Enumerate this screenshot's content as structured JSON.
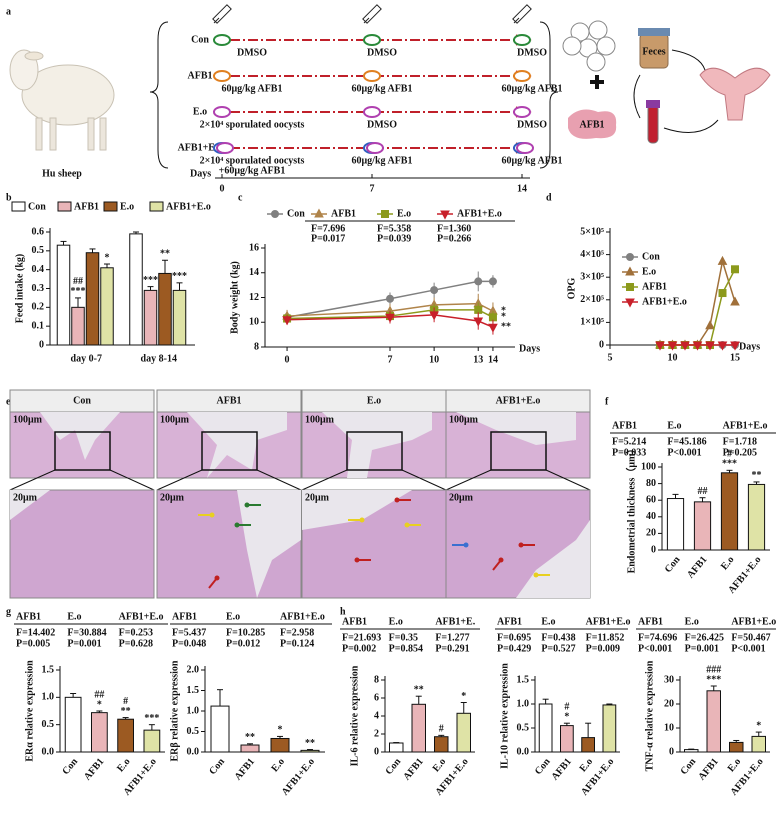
{
  "panel_labels": [
    "a",
    "b",
    "c",
    "d",
    "e",
    "f",
    "g",
    "h"
  ],
  "schematic": {
    "animal": "Hu sheep",
    "groups": [
      {
        "name": "Con",
        "doses": [
          [
            "DMSO"
          ],
          [
            "DMSO"
          ],
          [
            "DMSO"
          ]
        ]
      },
      {
        "name": "AFB1",
        "doses": [
          [
            "60μg/kg AFB1"
          ],
          [
            "60μg/kg AFB1"
          ],
          [
            "60μg/kg AFB1"
          ]
        ]
      },
      {
        "name": "E.o",
        "doses": [
          [
            "2×10⁴ sporulated oocysts"
          ],
          [
            "DMSO"
          ],
          [
            "DMSO"
          ]
        ]
      },
      {
        "name": "AFB1+E.o",
        "doses": [
          [
            "2×10⁴ sporulated oocysts",
            "+60μg/kg AFB1"
          ],
          [
            "60μg/kg AFB1"
          ],
          [
            "60μg/kg AFB1"
          ]
        ]
      }
    ],
    "days_label": "Days",
    "days": [
      0,
      7,
      14
    ],
    "toxin": "AFB1",
    "sample": "Feces"
  },
  "histology": {
    "groups": [
      "Con",
      "AFB1",
      "E.o",
      "AFB1+E.o"
    ],
    "scale_low_mag": "100μm",
    "scale_high_mag": "20μm"
  },
  "chart_data": [
    {
      "type": "bar",
      "categories": [
        "day 0-7",
        "day 8-14"
      ],
      "y_label": "Feed intake (kg)",
      "ylim": [
        0,
        0.6
      ],
      "yticks": [
        0,
        0.1,
        0.2,
        0.3,
        0.4,
        0.5,
        0.6
      ],
      "legend": "top",
      "series": [
        {
          "name": "Con",
          "color": "#ffffff",
          "values": [
            0.53,
            0.59
          ],
          "errors": [
            0.02,
            0.01
          ]
        },
        {
          "name": "AFB1",
          "color": "#e9b5b8",
          "values": [
            0.2,
            0.29
          ],
          "errors": [
            0.05,
            0.02
          ],
          "annotations": [
            {
              "index": 0,
              "lines": [
                "##",
                "***"
              ]
            },
            {
              "index": 1,
              "lines": [
                "***"
              ]
            }
          ]
        },
        {
          "name": "E.o",
          "color": "#9c5a22",
          "values": [
            0.49,
            0.38
          ],
          "errors": [
            0.02,
            0.07
          ],
          "annotations": [
            {
              "index": 1,
              "lines": [
                "**"
              ]
            }
          ]
        },
        {
          "name": "AFB1+E.o",
          "color": "#dfe3a6",
          "values": [
            0.41,
            0.29
          ],
          "errors": [
            0.02,
            0.04
          ],
          "annotations": [
            {
              "index": 0,
              "lines": [
                "*"
              ]
            },
            {
              "index": 1,
              "lines": [
                "***"
              ]
            }
          ]
        }
      ]
    },
    {
      "type": "line",
      "x": [
        0,
        7,
        10,
        13,
        14
      ],
      "xlim": [
        -1.5,
        15.5
      ],
      "xticks": [
        0,
        7,
        10,
        13,
        14
      ],
      "x_label": "Days",
      "y_label": "Body weight (kg)",
      "ylim": [
        8,
        16
      ],
      "yticks": [
        8,
        10,
        12,
        14,
        16
      ],
      "legend": "top",
      "series": [
        {
          "name": "Con",
          "color": "#808080",
          "marker": "circle",
          "values": [
            10.4,
            11.9,
            12.6,
            13.3,
            13.3
          ],
          "errors": [
            0.5,
            0.5,
            0.6,
            0.8,
            0.5
          ]
        },
        {
          "name": "AFB1",
          "color": "#b0844a",
          "marker": "triangle",
          "values": [
            10.5,
            10.9,
            11.4,
            11.5,
            10.9
          ],
          "errors": [
            0.5,
            0.6,
            0.6,
            0.8,
            0.7
          ],
          "annotations": [
            {
              "index": 4,
              "lines": [
                "*"
              ]
            }
          ]
        },
        {
          "name": "E.o",
          "color": "#8c9a1c",
          "marker": "square",
          "values": [
            10.3,
            10.5,
            11.0,
            11.0,
            10.4
          ],
          "errors": [
            0.4,
            0.5,
            0.5,
            0.6,
            0.5
          ],
          "annotations": [
            {
              "index": 4,
              "lines": [
                "*"
              ]
            }
          ]
        },
        {
          "name": "AFB1+E.o",
          "color": "#c8202a",
          "marker": "triangle-down",
          "values": [
            10.2,
            10.4,
            10.6,
            10.1,
            9.6
          ],
          "errors": [
            0.4,
            0.5,
            0.6,
            0.7,
            0.6
          ],
          "annotations": [
            {
              "index": 4,
              "lines": [
                "**"
              ]
            }
          ]
        }
      ],
      "stats": [
        {
          "F": "F=7.696",
          "P": "P=0.017"
        },
        {
          "F": "F=5.358",
          "P": "P=0.039"
        },
        {
          "F": "F=1.360",
          "P": "P=0.266"
        }
      ]
    },
    {
      "type": "line",
      "x": [
        9,
        10,
        11,
        12,
        13,
        14,
        15
      ],
      "xlim": [
        5,
        15
      ],
      "xticks": [
        5,
        10,
        15
      ],
      "x_label": "Days",
      "y_label": "OPG",
      "ylim": [
        0,
        500000
      ],
      "yticks": [
        0,
        {
          "value": 100000,
          "label": "1×10⁵"
        },
        {
          "value": 200000,
          "label": "2×10⁵"
        },
        {
          "value": 300000,
          "label": "3×10⁵"
        },
        {
          "value": 400000,
          "label": "4×10⁵"
        },
        {
          "value": 500000,
          "label": "5×10⁵"
        }
      ],
      "legend": "upper left",
      "series": [
        {
          "name": "Con",
          "color": "#808080",
          "marker": "circle",
          "values": [
            0,
            0,
            0,
            0,
            0,
            0,
            0
          ]
        },
        {
          "name": "E.o",
          "color": "#a0703a",
          "marker": "triangle",
          "values": [
            0,
            0,
            0,
            0,
            85000,
            370000,
            190000
          ]
        },
        {
          "name": "AFB1",
          "color": "#8c9a1c",
          "marker": "square",
          "values": [
            0,
            0,
            0,
            0,
            0,
            230000,
            335000
          ]
        },
        {
          "name": "AFB1+E.o",
          "color": "#c8202a",
          "marker": "triangle-down",
          "values": [
            0,
            0,
            0,
            0,
            0,
            0,
            0
          ]
        }
      ]
    },
    {
      "type": "bar",
      "categories": [
        "Con",
        "AFB1",
        "E.o",
        "AFB1+E.o"
      ],
      "colors": [
        "#ffffff",
        "#e9b5b8",
        "#9c5a22",
        "#dfe3a6"
      ],
      "values": [
        62,
        58,
        93,
        79
      ],
      "errors": [
        5,
        5,
        3,
        3
      ],
      "ylim": [
        0,
        100
      ],
      "yticks": [
        0,
        20,
        40,
        60,
        80,
        100
      ],
      "y_label": "Endometrial thickness（μm）",
      "annotations": [
        {
          "index": 1,
          "lines": [
            "##"
          ]
        },
        {
          "index": 2,
          "lines": [
            "#",
            "***"
          ]
        },
        {
          "index": 3,
          "lines": [
            "**"
          ]
        }
      ],
      "stats": [
        {
          "group": "AFB1",
          "F": "F=5.214",
          "P": "P=0.033"
        },
        {
          "group": "E.o",
          "F": "F=45.186",
          "P": "P<0.001"
        },
        {
          "group": "AFB1+E.o",
          "F": "F=1.718",
          "P": "P=0.205"
        }
      ]
    },
    {
      "type": "bar",
      "categories": [
        "Con",
        "AFB1",
        "E.o",
        "AFB1+E.o"
      ],
      "colors": [
        "#ffffff",
        "#e9b5b8",
        "#9c5a22",
        "#dfe3a6"
      ],
      "values": [
        1.0,
        0.72,
        0.6,
        0.4
      ],
      "errors": [
        0.07,
        0.03,
        0.03,
        0.1
      ],
      "ylim": [
        0,
        1.5
      ],
      "yticks": [
        {
          "value": 0,
          "label": "0.0"
        },
        0.5,
        {
          "value": 1,
          "label": "1.0"
        },
        1.5
      ],
      "y_label": "ERα relative expression",
      "annotations": [
        {
          "index": 1,
          "lines": [
            "##",
            "*"
          ]
        },
        {
          "index": 2,
          "lines": [
            "#",
            "**"
          ]
        },
        {
          "index": 3,
          "lines": [
            "***"
          ]
        }
      ],
      "stats": [
        {
          "group": "AFB1",
          "F": "F=14.402",
          "P": "P=0.005"
        },
        {
          "group": "E.o",
          "F": "F=30.884",
          "P": "P=0.001"
        },
        {
          "group": "AFB1+E.o",
          "F": "F=0.253",
          "P": "P=0.628"
        }
      ]
    },
    {
      "type": "bar",
      "categories": [
        "Con",
        "AFB1",
        "E.o",
        "AFB1+E.o"
      ],
      "colors": [
        "#ffffff",
        "#e9b5b8",
        "#9c5a22",
        "#dfe3a6"
      ],
      "values": [
        1.12,
        0.17,
        0.33,
        0.04
      ],
      "errors": [
        0.4,
        0.03,
        0.05,
        0.02
      ],
      "ylim": [
        0,
        2
      ],
      "yticks": [
        {
          "value": 0,
          "label": "0.0"
        },
        0.5,
        {
          "value": 1,
          "label": "1.0"
        },
        1.5,
        {
          "value": 2,
          "label": "2.0"
        }
      ],
      "y_label": "ERβ relative expression",
      "annotations": [
        {
          "index": 1,
          "lines": [
            "**"
          ]
        },
        {
          "index": 2,
          "lines": [
            "*"
          ]
        },
        {
          "index": 3,
          "lines": [
            "**"
          ]
        }
      ],
      "stats": [
        {
          "group": "AFB1",
          "F": "F=5.437",
          "P": "P=0.048"
        },
        {
          "group": "E.o",
          "F": "F=10.285",
          "P": "P=0.012"
        },
        {
          "group": "AFB1+E.o",
          "F": "F=2.958",
          "P": "P=0.124"
        }
      ]
    },
    {
      "type": "bar",
      "categories": [
        "Con",
        "AFB1",
        "E.o",
        "AFB1+E.o"
      ],
      "colors": [
        "#ffffff",
        "#e9b5b8",
        "#9c5a22",
        "#dfe3a6"
      ],
      "values": [
        1.0,
        5.3,
        1.7,
        4.3
      ],
      "errors": [
        0.05,
        0.9,
        0.15,
        1.2
      ],
      "ylim": [
        0,
        8
      ],
      "yticks": [
        0,
        2,
        4,
        6,
        8
      ],
      "y_label": "IL-6 relative expression",
      "annotations": [
        {
          "index": 1,
          "lines": [
            "**"
          ]
        },
        {
          "index": 2,
          "lines": [
            "#"
          ]
        },
        {
          "index": 3,
          "lines": [
            "*"
          ]
        }
      ],
      "stats": [
        {
          "group": "AFB1",
          "F": "F=21.693",
          "P": "P=0.002"
        },
        {
          "group": "E.o",
          "F": "F=0.35",
          "P": "P=0.854"
        },
        {
          "group": "AFB1+E.",
          "F": "F=1.277",
          "P": "P=0.291"
        }
      ]
    },
    {
      "type": "bar",
      "categories": [
        "Con",
        "AFB1",
        "E.o",
        "AFB1+E.o"
      ],
      "colors": [
        "#ffffff",
        "#e9b5b8",
        "#9c5a22",
        "#dfe3a6"
      ],
      "values": [
        1.0,
        0.55,
        0.3,
        0.98
      ],
      "errors": [
        0.1,
        0.05,
        0.3,
        0.02
      ],
      "ylim": [
        0,
        1.5
      ],
      "yticks": [
        {
          "value": 0,
          "label": "0.0"
        },
        0.5,
        {
          "value": 1,
          "label": "1.0"
        },
        1.5
      ],
      "y_label": "IL-10 relative expression",
      "annotations": [
        {
          "index": 1,
          "lines": [
            "#",
            "*"
          ]
        }
      ],
      "stats": [
        {
          "group": "AFB1",
          "F": "F=0.695",
          "P": "P=0.429"
        },
        {
          "group": "E.o",
          "F": "F=0.438",
          "P": "P=0.527"
        },
        {
          "group": "AFB1+E.o",
          "F": "F=11.852",
          "P": "P=0.009"
        }
      ]
    },
    {
      "type": "bar",
      "categories": [
        "Con",
        "AFB1",
        "E.o",
        "AFB1+E.o"
      ],
      "colors": [
        "#ffffff",
        "#e9b5b8",
        "#9c5a22",
        "#dfe3a6"
      ],
      "values": [
        1.0,
        25.5,
        4.0,
        6.5
      ],
      "errors": [
        0.2,
        2.0,
        0.8,
        1.8
      ],
      "ylim": [
        0,
        30
      ],
      "yticks": [
        0,
        10,
        20,
        30
      ],
      "y_label": "TNF-α relative expression",
      "annotations": [
        {
          "index": 1,
          "lines": [
            "###",
            "***"
          ]
        },
        {
          "index": 3,
          "lines": [
            "*"
          ]
        }
      ],
      "stats": [
        {
          "group": "AFB1",
          "F": "F=74.696",
          "P": "P<0.001"
        },
        {
          "group": "E.o",
          "F": "F=26.425",
          "P": "P=0.001"
        },
        {
          "group": "AFB1+E.o",
          "F": "F=50.467",
          "P": "P<0.001"
        }
      ]
    }
  ]
}
